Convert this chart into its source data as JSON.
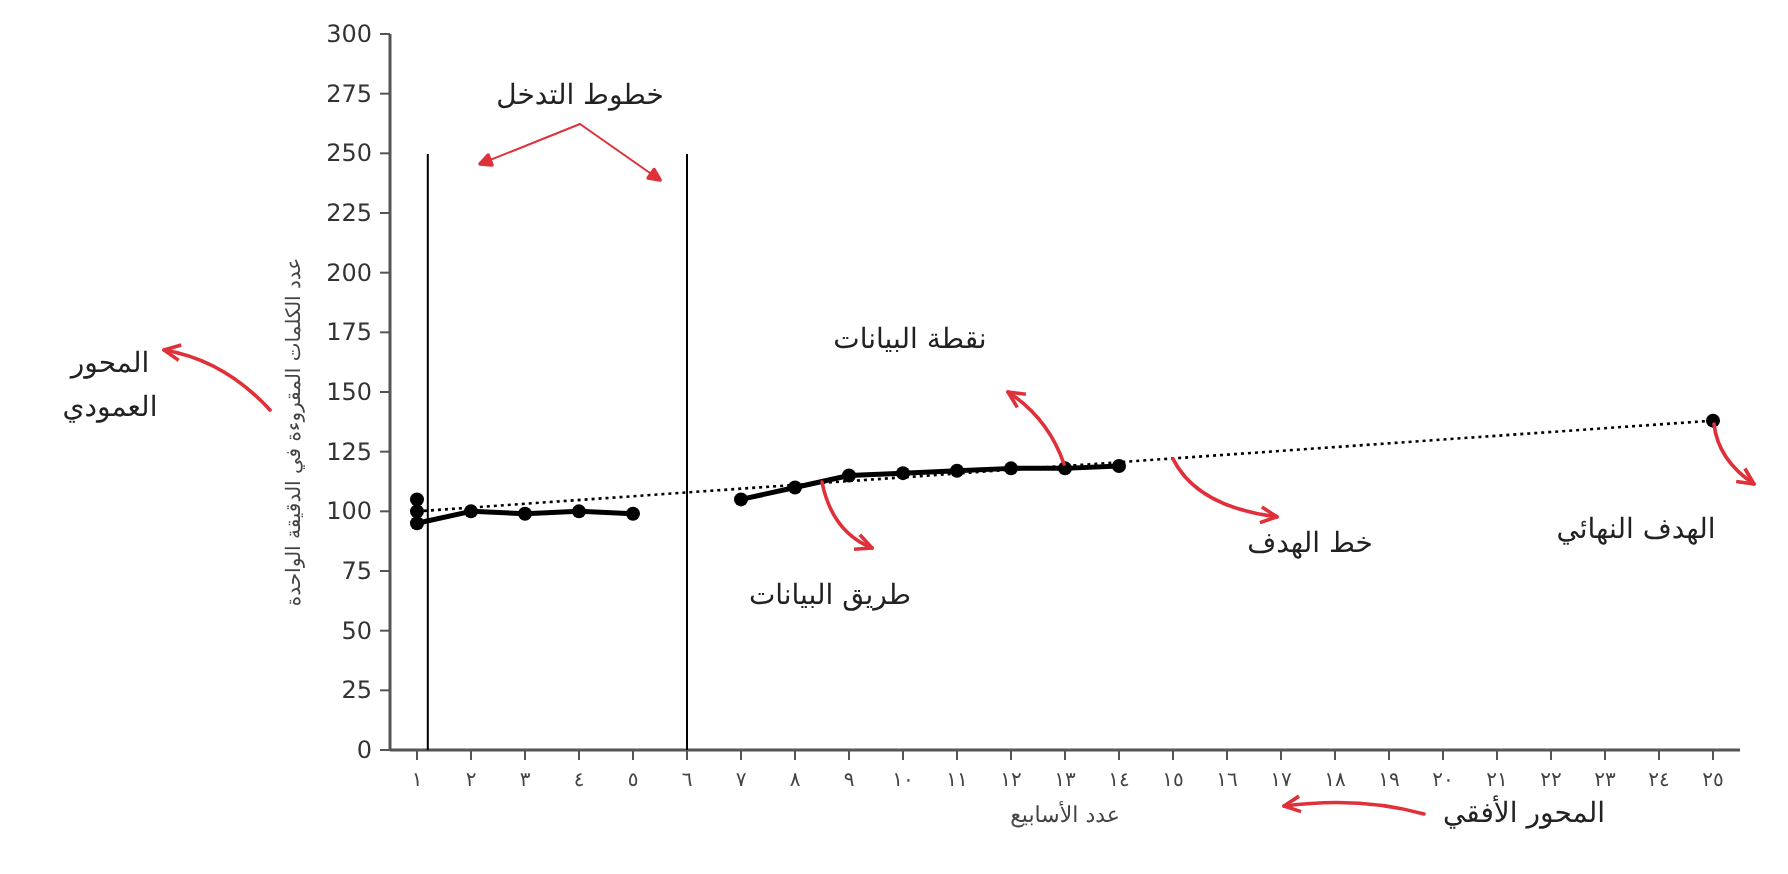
{
  "chart_data": {
    "type": "line",
    "xlabel": "عدد الأسابيع",
    "ylabel": "عدد الكلمات المقروءة في الدقيقة الواحدة",
    "xlim": [
      0.5,
      25.5
    ],
    "xticks": [
      {
        "value": 1,
        "label": "١"
      },
      {
        "value": 2,
        "label": "٢"
      },
      {
        "value": 3,
        "label": "٣"
      },
      {
        "value": 4,
        "label": "٤"
      },
      {
        "value": 5,
        "label": "٥"
      },
      {
        "value": 6,
        "label": "٦"
      },
      {
        "value": 7,
        "label": "٧"
      },
      {
        "value": 8,
        "label": "٨"
      },
      {
        "value": 9,
        "label": "٩"
      },
      {
        "value": 10,
        "label": "١٠"
      },
      {
        "value": 11,
        "label": "١١"
      },
      {
        "value": 12,
        "label": "١٢"
      },
      {
        "value": 13,
        "label": "١٣"
      },
      {
        "value": 14,
        "label": "١٤"
      },
      {
        "value": 15,
        "label": "١٥"
      },
      {
        "value": 16,
        "label": "١٦"
      },
      {
        "value": 17,
        "label": "١٧"
      },
      {
        "value": 18,
        "label": "١٨"
      },
      {
        "value": 19,
        "label": "١٩"
      },
      {
        "value": 20,
        "label": "٢٠"
      },
      {
        "value": 21,
        "label": "٢١"
      },
      {
        "value": 22,
        "label": "٢٢"
      },
      {
        "value": 23,
        "label": "٢٣"
      },
      {
        "value": 24,
        "label": "٢٤"
      },
      {
        "value": 25,
        "label": "٢٥"
      }
    ],
    "ylim": [
      0,
      300
    ],
    "yticks": [
      0,
      25,
      50,
      75,
      100,
      125,
      150,
      175,
      200,
      225,
      250,
      275,
      300
    ],
    "grid": false,
    "series": [
      {
        "color": "#000000",
        "marker": "circle",
        "line_style": "solid",
        "x": [
          1,
          2,
          3,
          4,
          5
        ],
        "values": [
          95,
          100,
          99,
          100,
          99
        ]
      },
      {
        "color": "#000000",
        "marker": "circle",
        "line_style": "solid",
        "x": [
          7,
          8,
          9,
          10,
          11,
          12,
          13,
          14
        ],
        "values": [
          105,
          110,
          115,
          116,
          117,
          118,
          118,
          119
        ]
      },
      {
        "color": "#000000",
        "marker": "none",
        "line_style": "dotted",
        "x": [
          1,
          25
        ],
        "values": [
          100,
          138
        ]
      },
      {
        "type": "scatter",
        "color": "#000000",
        "marker": "circle",
        "x": [
          1,
          1,
          25
        ],
        "values": [
          105,
          100,
          138
        ]
      }
    ],
    "ref_lines": [
      {
        "axis": "x",
        "value": 1.2,
        "color": "#000000"
      },
      {
        "axis": "x",
        "value": 6,
        "color": "#000000"
      }
    ],
    "annotations": [
      "خطوط التدخل",
      "المحور العمودي",
      "نقطة البيانات",
      "طريق البيانات",
      {
        "text": "خط الهدف",
        "x": 15,
        "y": 122
      },
      "الهدف النهائي",
      "المحور الأفقي"
    ]
  }
}
